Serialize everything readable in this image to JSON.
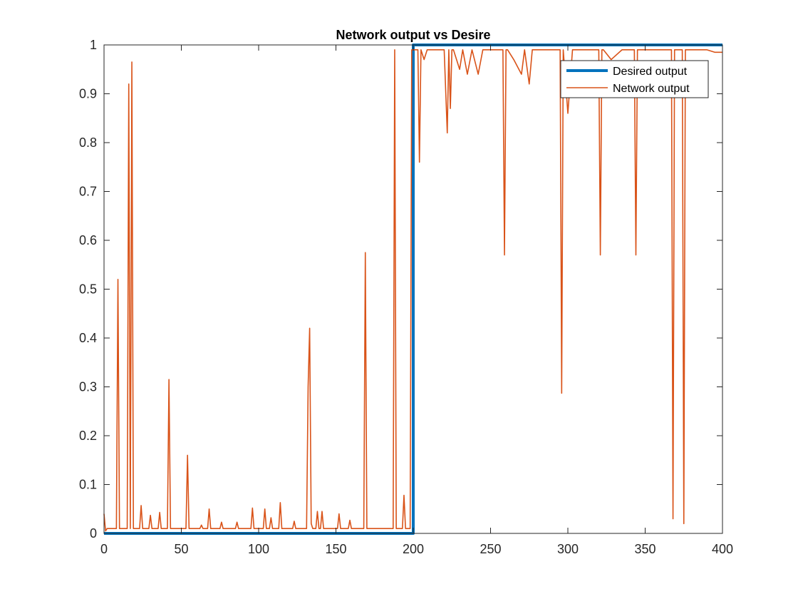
{
  "chart_data": {
    "type": "line",
    "title": "Network output vs Desire",
    "xlabel": "",
    "ylabel": "",
    "xlim": [
      0,
      400
    ],
    "ylim": [
      0,
      1
    ],
    "grid": false,
    "legend_position": "top-right",
    "x_ticks": [
      "0",
      "50",
      "100",
      "150",
      "200",
      "250",
      "300",
      "350",
      "400"
    ],
    "y_ticks": [
      "0",
      "0.1",
      "0.2",
      "0.3",
      "0.4",
      "0.5",
      "0.6",
      "0.7",
      "0.8",
      "0.9",
      "1"
    ],
    "series": [
      {
        "name": "Desired output",
        "color": "#0072BD",
        "x": [
          0,
          200,
          200,
          400
        ],
        "y": [
          0,
          0,
          1,
          1
        ]
      },
      {
        "name": "Network output",
        "color": "#D95319",
        "x": [
          0,
          1,
          2,
          8,
          9,
          10,
          11,
          15,
          16,
          17,
          18,
          19,
          23,
          24,
          25,
          29,
          30,
          31,
          35,
          36,
          37,
          41,
          42,
          43,
          50,
          53,
          54,
          55,
          62,
          63,
          64,
          67,
          68,
          69,
          75,
          76,
          77,
          85,
          86,
          87,
          95,
          96,
          97,
          103,
          104,
          105,
          107,
          108,
          109,
          113,
          114,
          115,
          122,
          123,
          124,
          131,
          132,
          133,
          134,
          135,
          137,
          138,
          139,
          140,
          141,
          142,
          151,
          152,
          153,
          158,
          159,
          160,
          168,
          169,
          170,
          187,
          188,
          189,
          193,
          194,
          195,
          198,
          199,
          200,
          201,
          203,
          204,
          205,
          207,
          209,
          211,
          220,
          222,
          223,
          224,
          225,
          226,
          230,
          232,
          235,
          238,
          242,
          245,
          248,
          258,
          259,
          260,
          261,
          265,
          270,
          272,
          275,
          277,
          280,
          295,
          296,
          297,
          300,
          303,
          305,
          310,
          320,
          321,
          322,
          323,
          328,
          335,
          343,
          344,
          345,
          350,
          360,
          367,
          368,
          369,
          370,
          374,
          375,
          376,
          380,
          390,
          395,
          400
        ],
        "y": [
          0.04,
          0.005,
          0.01,
          0.01,
          0.52,
          0.01,
          0.01,
          0.01,
          0.92,
          0.01,
          0.965,
          0.01,
          0.01,
          0.057,
          0.01,
          0.01,
          0.037,
          0.01,
          0.01,
          0.043,
          0.01,
          0.01,
          0.315,
          0.01,
          0.01,
          0.01,
          0.16,
          0.01,
          0.01,
          0.017,
          0.01,
          0.01,
          0.05,
          0.01,
          0.01,
          0.023,
          0.01,
          0.01,
          0.023,
          0.01,
          0.01,
          0.052,
          0.01,
          0.01,
          0.05,
          0.01,
          0.01,
          0.032,
          0.01,
          0.01,
          0.063,
          0.01,
          0.01,
          0.025,
          0.01,
          0.01,
          0.3,
          0.42,
          0.02,
          0.01,
          0.01,
          0.045,
          0.01,
          0.01,
          0.045,
          0.01,
          0.01,
          0.04,
          0.01,
          0.01,
          0.027,
          0.01,
          0.01,
          0.575,
          0.01,
          0.01,
          0.99,
          0.01,
          0.01,
          0.078,
          0.01,
          0.01,
          0.99,
          0.99,
          0.99,
          0.99,
          0.76,
          0.99,
          0.97,
          0.99,
          0.99,
          0.99,
          0.82,
          0.99,
          0.87,
          0.99,
          0.99,
          0.95,
          0.99,
          0.94,
          0.99,
          0.94,
          0.99,
          0.99,
          0.99,
          0.57,
          0.99,
          0.99,
          0.97,
          0.94,
          0.99,
          0.92,
          0.99,
          0.99,
          0.99,
          0.287,
          0.99,
          0.86,
          0.99,
          0.99,
          0.99,
          0.99,
          0.57,
          0.99,
          0.99,
          0.97,
          0.99,
          0.99,
          0.57,
          0.99,
          0.99,
          0.99,
          0.99,
          0.03,
          0.99,
          0.99,
          0.99,
          0.02,
          0.99,
          0.99,
          0.99,
          0.985,
          0.985
        ]
      }
    ]
  }
}
